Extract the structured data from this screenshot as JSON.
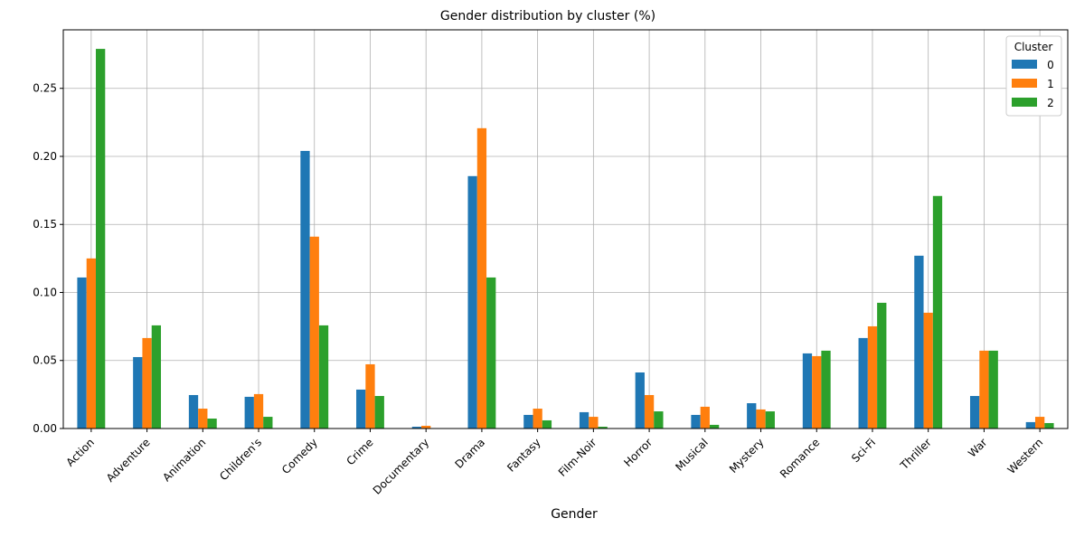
{
  "chart_data": {
    "type": "bar",
    "title": "Gender distribution by cluster (%)",
    "xlabel": "Gender",
    "ylabel": "",
    "ylim": [
      0,
      0.293
    ],
    "yticks": [
      "0.00",
      "0.05",
      "0.10",
      "0.15",
      "0.20",
      "0.25"
    ],
    "grid": true,
    "legend": {
      "title": "Cluster",
      "placement": "top-right"
    },
    "categories": [
      "Action",
      "Adventure",
      "Animation",
      "Children's",
      "Comedy",
      "Crime",
      "Documentary",
      "Drama",
      "Fantasy",
      "Film-Noir",
      "Horror",
      "Musical",
      "Mystery",
      "Romance",
      "Sci-Fi",
      "Thriller",
      "War",
      "Western"
    ],
    "series": [
      {
        "name": "0",
        "color": "#1f77b4",
        "values": [
          0.111,
          0.0525,
          0.0246,
          0.0233,
          0.204,
          0.0286,
          0.0013,
          0.1855,
          0.01,
          0.012,
          0.0412,
          0.01,
          0.0186,
          0.0552,
          0.0665,
          0.127,
          0.0239,
          0.0047
        ]
      },
      {
        "name": "1",
        "color": "#ff7f0e",
        "values": [
          0.125,
          0.0665,
          0.0146,
          0.0253,
          0.141,
          0.0472,
          0.002,
          0.2207,
          0.0146,
          0.0086,
          0.0246,
          0.016,
          0.014,
          0.0532,
          0.0751,
          0.0851,
          0.0572,
          0.0086
        ]
      },
      {
        "name": "2",
        "color": "#2ca02c",
        "values": [
          0.279,
          0.0758,
          0.0073,
          0.0086,
          0.0758,
          0.0239,
          0.0,
          0.111,
          0.006,
          0.0013,
          0.0126,
          0.0027,
          0.0126,
          0.0572,
          0.0924,
          0.1709,
          0.0572,
          0.004
        ]
      }
    ]
  }
}
